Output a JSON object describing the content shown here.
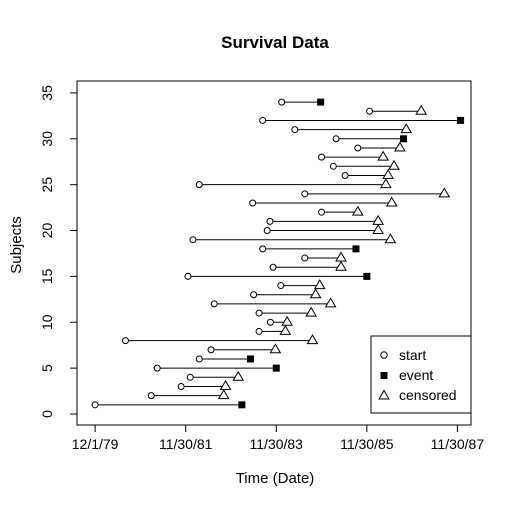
{
  "chart_data": {
    "type": "scatter",
    "title": "Survival Data",
    "xlabel": "Time (Date)",
    "ylabel": "Subjects",
    "x_ticks": [
      "12/1/79",
      "11/30/81",
      "11/30/83",
      "11/30/85",
      "11/30/87"
    ],
    "x_tick_values": [
      0,
      2,
      4,
      6,
      8
    ],
    "xlim": [
      -0.4,
      8.3
    ],
    "y_ticks": [
      "0",
      "5",
      "10",
      "15",
      "20",
      "25",
      "30",
      "35"
    ],
    "y_tick_values": [
      0,
      5,
      10,
      15,
      20,
      25,
      30,
      35
    ],
    "ylim": [
      -1.2,
      36.3
    ],
    "grid": false,
    "legend_position": "bottom-right",
    "legend": [
      {
        "label": "start",
        "marker": "circle"
      },
      {
        "label": "event",
        "marker": "square"
      },
      {
        "label": "censored",
        "marker": "triangle"
      }
    ],
    "subjects": [
      {
        "id": 1,
        "start": 0.0,
        "end": 3.24,
        "status": "event"
      },
      {
        "id": 2,
        "start": 1.24,
        "end": 2.84,
        "status": "censored"
      },
      {
        "id": 3,
        "start": 1.9,
        "end": 2.88,
        "status": "censored"
      },
      {
        "id": 4,
        "start": 2.1,
        "end": 3.16,
        "status": "censored"
      },
      {
        "id": 5,
        "start": 1.37,
        "end": 4.0,
        "status": "event"
      },
      {
        "id": 6,
        "start": 2.3,
        "end": 3.43,
        "status": "event"
      },
      {
        "id": 7,
        "start": 2.56,
        "end": 3.98,
        "status": "censored"
      },
      {
        "id": 8,
        "start": 0.67,
        "end": 4.8,
        "status": "censored"
      },
      {
        "id": 9,
        "start": 3.62,
        "end": 4.2,
        "status": "censored"
      },
      {
        "id": 10,
        "start": 3.87,
        "end": 4.24,
        "status": "censored"
      },
      {
        "id": 11,
        "start": 3.62,
        "end": 4.77,
        "status": "censored"
      },
      {
        "id": 12,
        "start": 2.63,
        "end": 5.2,
        "status": "censored"
      },
      {
        "id": 13,
        "start": 3.5,
        "end": 4.87,
        "status": "censored"
      },
      {
        "id": 14,
        "start": 4.1,
        "end": 4.96,
        "status": "censored"
      },
      {
        "id": 15,
        "start": 2.05,
        "end": 6.0,
        "status": "event"
      },
      {
        "id": 16,
        "start": 3.93,
        "end": 5.43,
        "status": "censored"
      },
      {
        "id": 17,
        "start": 4.63,
        "end": 5.43,
        "status": "censored"
      },
      {
        "id": 18,
        "start": 3.7,
        "end": 5.76,
        "status": "event"
      },
      {
        "id": 19,
        "start": 2.16,
        "end": 6.52,
        "status": "censored"
      },
      {
        "id": 20,
        "start": 3.8,
        "end": 6.25,
        "status": "censored"
      },
      {
        "id": 21,
        "start": 3.86,
        "end": 6.25,
        "status": "censored"
      },
      {
        "id": 22,
        "start": 5.0,
        "end": 5.8,
        "status": "censored"
      },
      {
        "id": 23,
        "start": 3.48,
        "end": 6.55,
        "status": "censored"
      },
      {
        "id": 24,
        "start": 4.63,
        "end": 7.71,
        "status": "censored"
      },
      {
        "id": 25,
        "start": 2.3,
        "end": 6.42,
        "status": "censored"
      },
      {
        "id": 26,
        "start": 5.52,
        "end": 6.47,
        "status": "censored"
      },
      {
        "id": 27,
        "start": 5.26,
        "end": 6.6,
        "status": "censored"
      },
      {
        "id": 28,
        "start": 5.0,
        "end": 6.36,
        "status": "censored"
      },
      {
        "id": 29,
        "start": 5.8,
        "end": 6.73,
        "status": "censored"
      },
      {
        "id": 30,
        "start": 5.32,
        "end": 6.81,
        "status": "event"
      },
      {
        "id": 31,
        "start": 4.41,
        "end": 6.87,
        "status": "censored"
      },
      {
        "id": 32,
        "start": 3.7,
        "end": 8.07,
        "status": "event"
      },
      {
        "id": 33,
        "start": 6.06,
        "end": 7.2,
        "status": "censored"
      },
      {
        "id": 34,
        "start": 4.12,
        "end": 4.98,
        "status": "event"
      }
    ]
  }
}
